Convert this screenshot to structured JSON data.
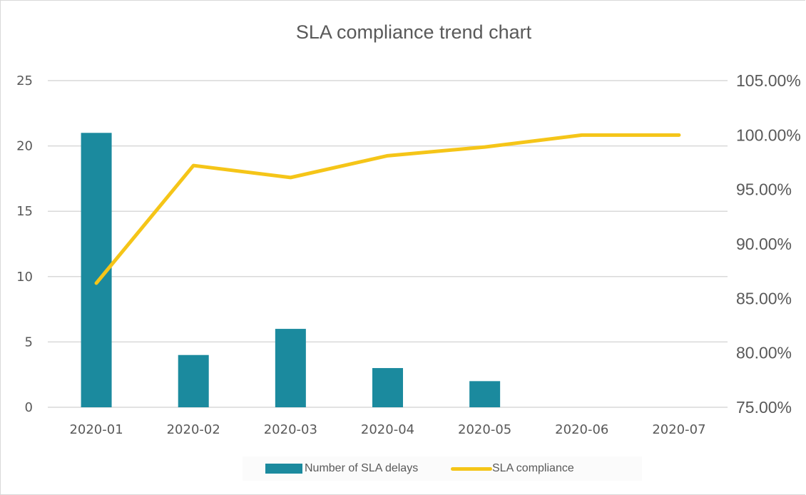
{
  "chart_data": {
    "type": "bar",
    "title": "SLA compliance trend chart",
    "categories": [
      "2020-01",
      "2020-02",
      "2020-03",
      "2020-04",
      "2020-05",
      "2020-06",
      "2020-07"
    ],
    "series": [
      {
        "name": "Number of SLA delays",
        "type": "bar",
        "axis": "left",
        "values": [
          21,
          4,
          6,
          3,
          2,
          0,
          0
        ]
      },
      {
        "name": "SLA compliance",
        "type": "line",
        "axis": "right",
        "values": [
          86.4,
          97.2,
          96.1,
          98.1,
          98.9,
          100.0,
          100.0
        ]
      }
    ],
    "y_left": {
      "ylim": [
        0,
        25
      ],
      "ticks": [
        "0",
        "5",
        "10",
        "15",
        "20",
        "25"
      ]
    },
    "y_right": {
      "ylim": [
        75,
        105
      ],
      "ticks": [
        "75.00%",
        "80.00%",
        "85.00%",
        "90.00%",
        "95.00%",
        "100.00%",
        "105.00%"
      ]
    },
    "grid": true,
    "legend": "bottom",
    "colors": {
      "bar": "#1b8a9e",
      "line": "#f5c518",
      "grid": "#d9d9d9",
      "text": "#595959"
    }
  }
}
